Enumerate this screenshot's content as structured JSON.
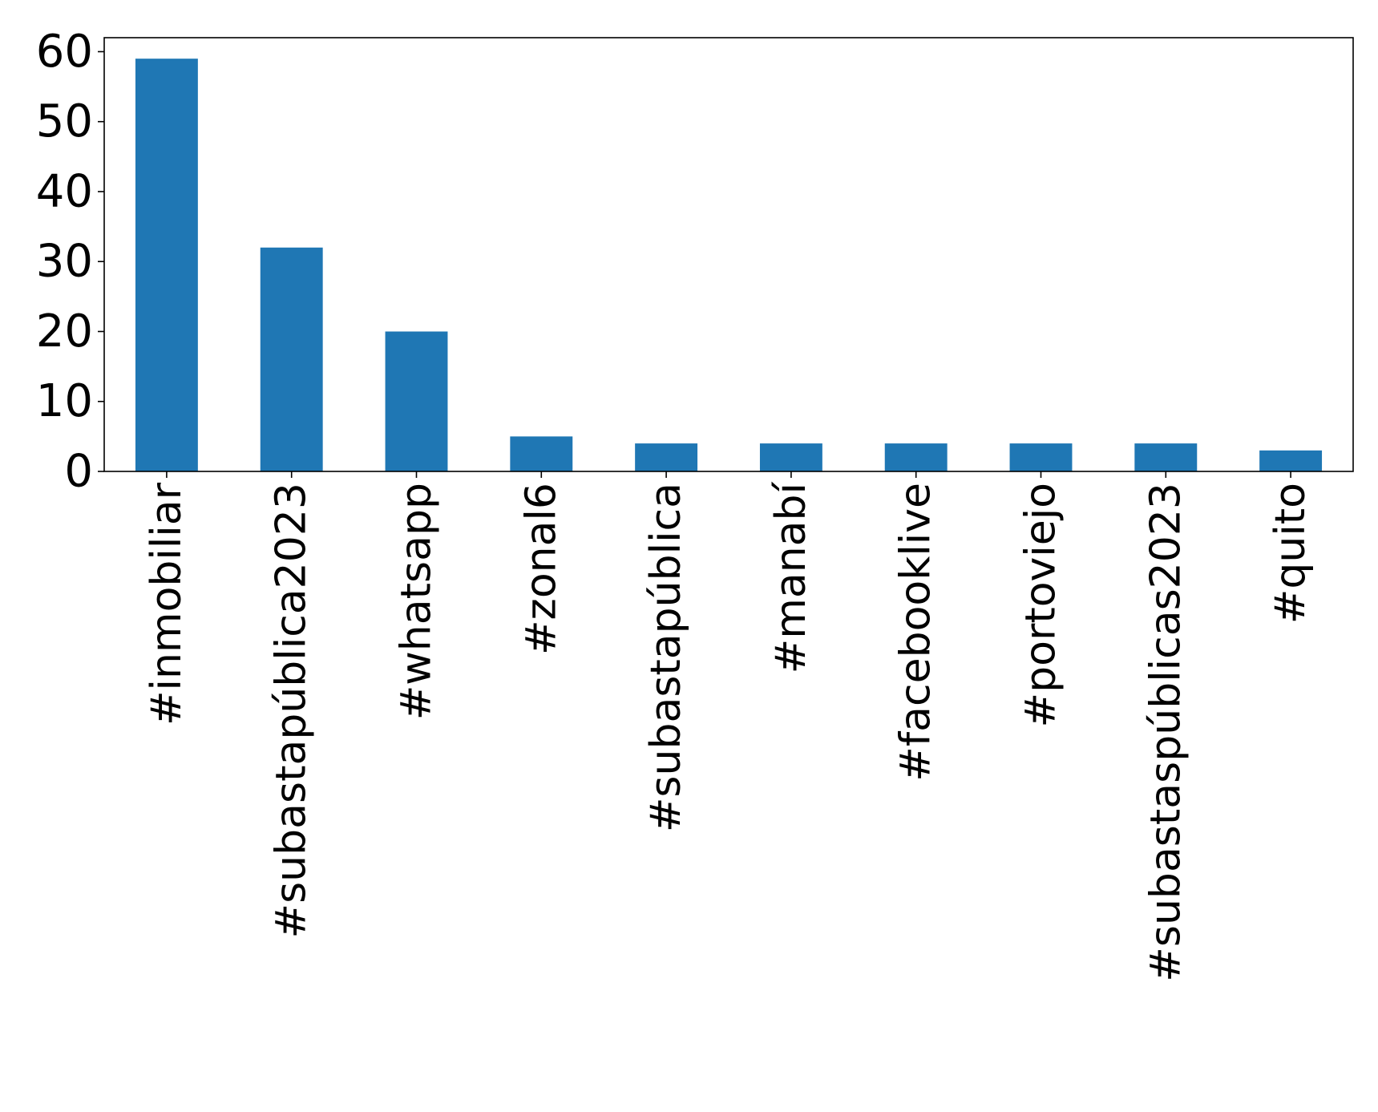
{
  "chart_data": {
    "type": "bar",
    "categories": [
      "#inmobiliar",
      "#subastapública2023",
      "#whatsapp",
      "#zonal6",
      "#subastapública",
      "#manabí",
      "#facebooklive",
      "#portoviejo",
      "#subastaspúblicas2023",
      "#quito"
    ],
    "series": [
      {
        "values": [
          59,
          32,
          20,
          5,
          4,
          4,
          4,
          4,
          4,
          3
        ],
        "color": "#1f77b4"
      }
    ],
    "yticks": [
      "0",
      "10",
      "20",
      "30",
      "40",
      "50",
      "60"
    ],
    "ylim": [
      0,
      62
    ],
    "title": "",
    "xlabel": "",
    "ylabel": "",
    "grid": false,
    "legend": "none"
  }
}
